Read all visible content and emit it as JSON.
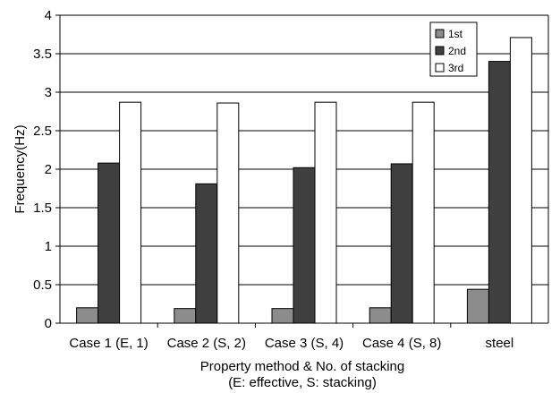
{
  "chart_data": {
    "type": "bar",
    "categories": [
      "Case 1 (E, 1)",
      "Case 2 (S, 2)",
      "Case 3 (S, 4)",
      "Case 4 (S, 8)",
      "steel"
    ],
    "series": [
      {
        "name": "1st",
        "values": [
          0.2,
          0.19,
          0.19,
          0.2,
          0.44
        ],
        "color": "#8c8c8c"
      },
      {
        "name": "2nd",
        "values": [
          2.08,
          1.81,
          2.02,
          2.07,
          3.4
        ],
        "color": "#404040"
      },
      {
        "name": "3rd",
        "values": [
          2.87,
          2.86,
          2.87,
          2.87,
          3.71
        ],
        "color": "#ffffff"
      }
    ],
    "ylim": [
      0,
      4
    ],
    "yticks": [
      "0",
      "0.5",
      "1",
      "1.5",
      "2",
      "2.5",
      "3",
      "3.5",
      "4"
    ],
    "ylabel": "Frequency(Hz)",
    "xlabel_line1": "Property method & No. of stacking",
    "xlabel_line2": "(E: effective, S: stacking)",
    "grid": true,
    "legend_position": "top-right"
  }
}
